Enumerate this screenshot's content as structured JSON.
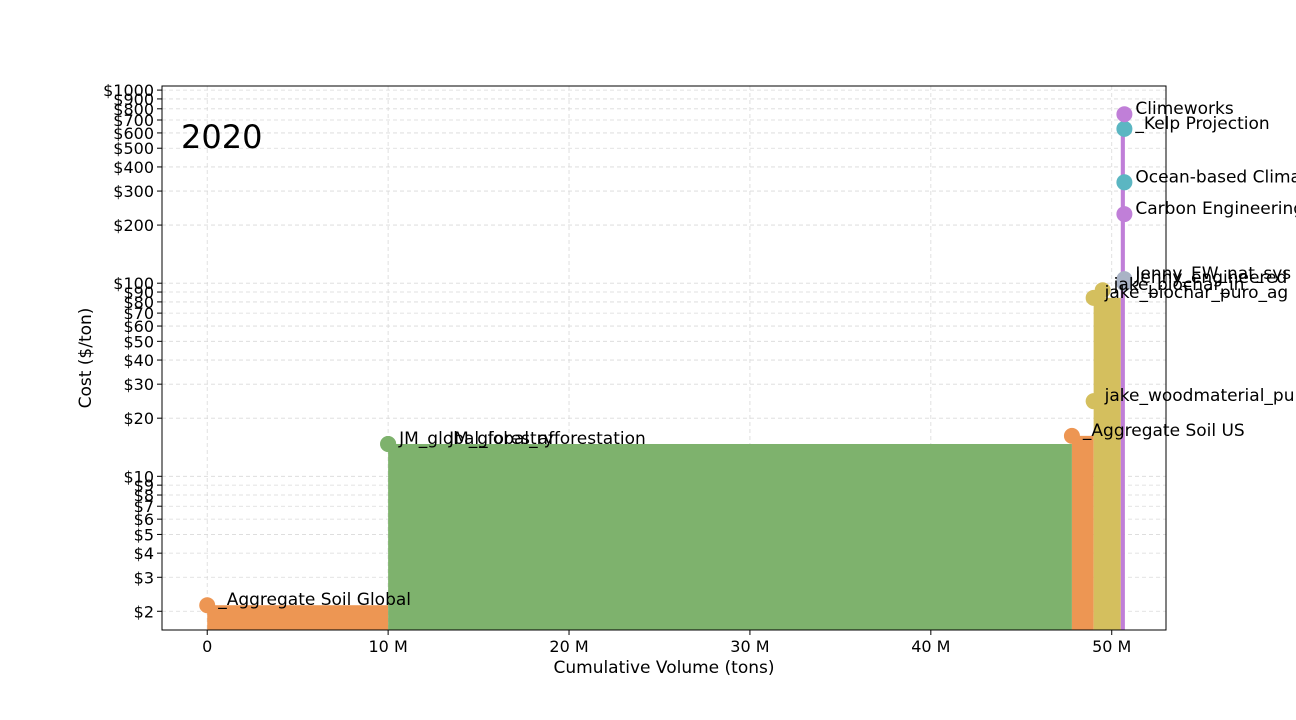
{
  "chart_data": {
    "type": "area",
    "title": "",
    "year_label": "2020",
    "xlabel": "Cumulative Volume (tons)",
    "ylabel": "Cost ($/ton)",
    "xlim": [
      -2500000,
      53000000
    ],
    "ylim": [
      1.6,
      1050
    ],
    "y_scale": "log",
    "grid": true,
    "x_ticks": [
      0,
      10000000,
      20000000,
      30000000,
      40000000,
      50000000
    ],
    "x_tick_labels": [
      "0",
      "10 M",
      "20 M",
      "30 M",
      "40 M",
      "50 M"
    ],
    "y_ticks": [
      2,
      3,
      4,
      5,
      6,
      7,
      8,
      9,
      10,
      20,
      30,
      40,
      50,
      60,
      70,
      80,
      90,
      100,
      200,
      300,
      400,
      500,
      600,
      700,
      800,
      900,
      1000
    ],
    "y_tick_labels": [
      "$2",
      "$3",
      "$4",
      "$5",
      "$6",
      "$7",
      "$8",
      "$9",
      "$10",
      "$20",
      "$30",
      "$40",
      "$50",
      "$60",
      "$70",
      "$80",
      "$90",
      "$100",
      "$200",
      "$300",
      "$400",
      "$500",
      "$600",
      "$700",
      "$800",
      "$900",
      "$1000"
    ],
    "colors": {
      "soil": "#ED9653",
      "forestry": "#7EB26D",
      "biochar": "#D4BF5E",
      "dac": "#C07FD8",
      "ocean": "#5BB6C2",
      "weathering": "#A9B3C5"
    },
    "steps": [
      {
        "x_start": 0,
        "x_end": 10000000,
        "cost": 2.15,
        "group": "soil"
      },
      {
        "x_start": 10000000,
        "x_end": 47800000,
        "cost": 14.7,
        "group": "forestry"
      },
      {
        "x_start": 47800000,
        "x_end": 49000000,
        "cost": 16.2,
        "group": "soil"
      },
      {
        "x_start": 49000000,
        "x_end": 50500000,
        "cost": 84,
        "group": "biochar"
      },
      {
        "x_start": 50500000,
        "x_end": 50700000,
        "cost": 750,
        "group": "dac"
      }
    ],
    "points": [
      {
        "x": 0,
        "y": 2.15,
        "name": "_Aggregate Soil Global",
        "group": "soil"
      },
      {
        "x": 10000000,
        "y": 14.7,
        "name": "JM_global_forestry",
        "group": "forestry"
      },
      {
        "x": 10000000,
        "y": 14.7,
        "name": "JM_global_afforestation",
        "group": "forestry",
        "label_dx": 50
      },
      {
        "x": 47800000,
        "y": 16.2,
        "name": "_Aggregate Soil US",
        "group": "soil"
      },
      {
        "x": 49000000,
        "y": 24.5,
        "name": "jake_woodmaterial_puro",
        "group": "biochar"
      },
      {
        "x": 49000000,
        "y": 84,
        "name": "jake_biochar_puro_ag",
        "group": "biochar"
      },
      {
        "x": 49500000,
        "y": 92,
        "name": "jake_biochar_in",
        "group": "biochar"
      },
      {
        "x": 50700000,
        "y": 105,
        "name": "Jenny_EW_nat_sys",
        "group": "weathering"
      },
      {
        "x": 50700000,
        "y": 100,
        "name": "Jenny_engineered",
        "group": "weathering"
      },
      {
        "x": 50700000,
        "y": 228,
        "name": "Carbon Engineering",
        "group": "dac"
      },
      {
        "x": 50700000,
        "y": 333,
        "name": "Ocean-based Climate",
        "group": "ocean"
      },
      {
        "x": 50700000,
        "y": 630,
        "name": "_Kelp Projection",
        "group": "ocean"
      },
      {
        "x": 50700000,
        "y": 750,
        "name": "Climeworks",
        "group": "dac"
      }
    ]
  }
}
